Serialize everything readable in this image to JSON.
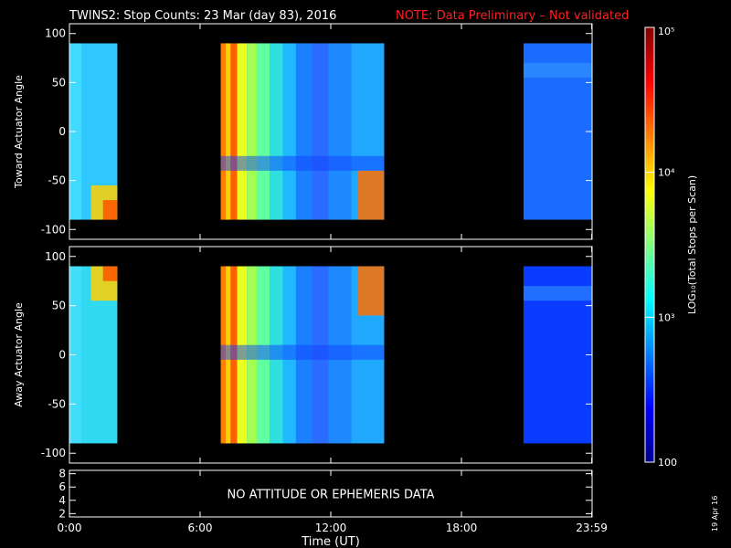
{
  "title": {
    "main": "TWINS2: Stop Counts: 23 Mar (day  83), 2016",
    "note": "NOTE: Data Preliminary – Not validated",
    "note_color": "#ff2020"
  },
  "footer": {
    "xlabel": "Time (UT)",
    "date_stamp": "19 Apr 16"
  },
  "chart_data": [
    {
      "type": "heatmap",
      "ylabel": "Toward Actuator Angle",
      "ylim": [
        -110,
        110
      ],
      "yticks": [
        100,
        50,
        0,
        -50,
        -100
      ],
      "xlim": [
        0,
        24
      ],
      "data_intervals_hours": [
        [
          0.0,
          2.2
        ],
        [
          6.95,
          14.45
        ],
        [
          20.85,
          24.0
        ]
      ]
    },
    {
      "type": "heatmap",
      "ylabel": "Away Actuator Angle",
      "ylim": [
        -110,
        110
      ],
      "yticks": [
        100,
        50,
        0,
        -50,
        -100
      ],
      "xlim": [
        0,
        24
      ],
      "data_intervals_hours": [
        [
          0.0,
          2.2
        ],
        [
          6.95,
          14.45
        ],
        [
          20.85,
          24.0
        ]
      ]
    },
    {
      "type": "line",
      "ylim": [
        1.5,
        8.5
      ],
      "yticks": [
        8,
        6,
        4,
        2
      ],
      "message": "NO ATTITUDE OR EPHEMERIS DATA"
    }
  ],
  "xaxis": {
    "tick_labels": [
      "0:00",
      "6:00",
      "12:00",
      "18:00",
      "23:59"
    ],
    "tick_hours": [
      0,
      6,
      12,
      18,
      23.983
    ]
  },
  "colorbar": {
    "label": "LOG₁₀(Total Stops per Scan)",
    "tick_labels": [
      "10⁵",
      "10⁴",
      "10³",
      "100"
    ],
    "tick_values": [
      100000,
      10000,
      1000,
      100
    ],
    "range": [
      100,
      100000
    ],
    "scale": "log"
  }
}
